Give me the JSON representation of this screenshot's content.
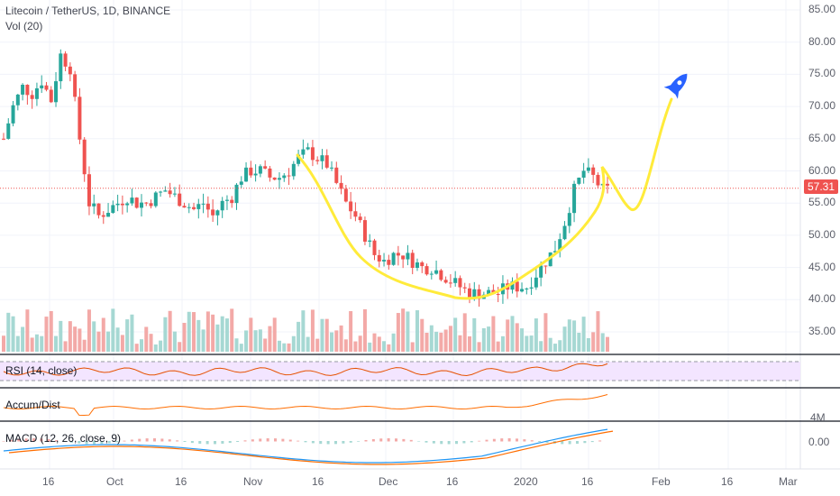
{
  "header": {
    "symbol_line": "Litecoin / TetherUS, 1D, BINANCE",
    "vol_label": "Vol (20)"
  },
  "panes": {
    "rsi_label": "RSI (14, close)",
    "ad_label": "Accum/Dist",
    "macd_label": "MACD (12, 26, close, 9)",
    "ad_axis_tick": "4M",
    "macd_axis_tick": "0.00"
  },
  "last_price": "57.31",
  "colors": {
    "up": "#26a69a",
    "down": "#ef5350",
    "up_vol": "#a6d8d3",
    "down_vol": "#f3a9a7",
    "annotation": "#ffeb3b",
    "rocket": "#2962ff",
    "rsi_line": "#e65100",
    "rsi_band": "#f3e5ff",
    "macd_line": "#2196f3",
    "signal_line": "#ff6d00"
  },
  "annotations": {
    "icon": "rocket-icon",
    "curve": "cup-and-handle projection"
  },
  "chart_data": {
    "type": "candlestick",
    "title": "Litecoin / TetherUS, 1D, BINANCE",
    "ylim": [
      30,
      87
    ],
    "yticks": [
      "35.00",
      "40.00",
      "45.00",
      "50.00",
      "55.00",
      "60.00",
      "65.00",
      "70.00",
      "75.00",
      "80.00",
      "85.00"
    ],
    "xticks": [
      "16",
      "Oct",
      "16",
      "Nov",
      "16",
      "Dec",
      "16",
      "2020",
      "16",
      "Feb",
      "16",
      "Mar"
    ],
    "last_price": 57.31,
    "series": [
      {
        "name": "price (close, approx.)",
        "values": [
          65,
          70,
          73,
          72,
          74,
          71,
          78,
          76,
          65,
          55,
          53,
          54,
          55,
          56,
          55,
          55,
          56,
          57,
          56,
          55,
          54,
          55,
          53,
          55,
          56,
          59,
          60,
          60,
          59,
          59,
          60,
          62,
          63,
          62,
          61,
          58,
          55,
          53,
          50,
          47,
          46,
          47,
          47,
          46,
          45,
          45,
          44,
          43,
          42,
          41,
          41,
          41,
          41,
          42,
          42,
          42,
          44,
          46,
          48,
          52,
          57,
          60,
          59,
          57
        ]
      }
    ]
  }
}
